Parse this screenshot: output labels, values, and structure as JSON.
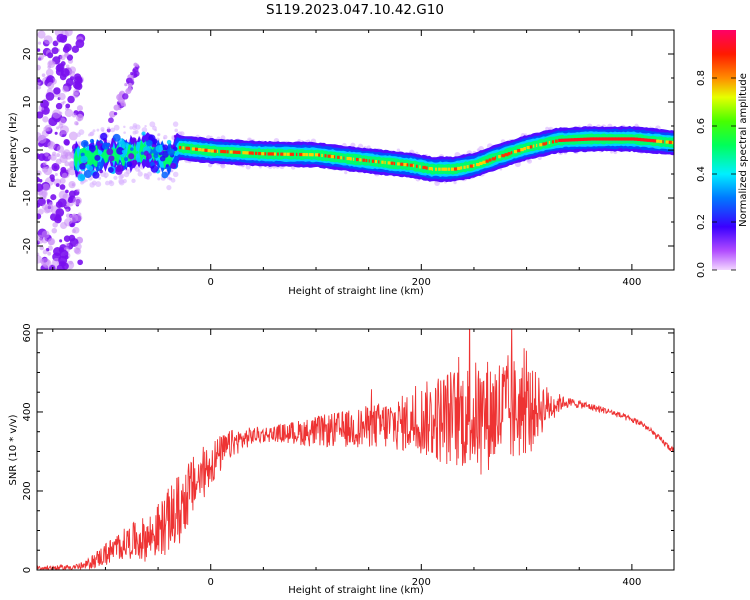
{
  "figure": {
    "title": "S119.2023.047.10.42.G10"
  },
  "chart_data": [
    {
      "type": "heatmap",
      "xlabel": "Height of straight line (km)",
      "ylabel": "Frequency (Hz)",
      "xlim": [
        -165,
        440
      ],
      "ylim": [
        -25,
        25
      ],
      "x_ticks": [
        0,
        200,
        400
      ],
      "y_ticks": [
        -20,
        -10,
        0,
        10,
        20
      ],
      "y_tick_labels": [
        "-20",
        "-10",
        "0",
        "10",
        "20"
      ],
      "grid": false,
      "colorbar": {
        "label": "Normalized spectral amplitude",
        "range": [
          0,
          1
        ],
        "ticks": [
          0.0,
          0.2,
          0.4,
          0.6,
          0.8
        ],
        "tick_labels": [
          "0.0",
          "0.2",
          "0.4",
          "0.6",
          "0.8"
        ],
        "colormap": "gist_rainbow (purple → blue → cyan → green → yellow → red → pink)"
      },
      "ridge": {
        "description": "center frequency of the dominant spectral ridge vs height",
        "x": [
          -130,
          -100,
          -80,
          -60,
          -40,
          -30,
          0,
          50,
          100,
          130,
          160,
          190,
          210,
          230,
          250,
          270,
          300,
          330,
          360,
          400,
          440
        ],
        "y": [
          -2,
          -1,
          -1,
          0,
          -2,
          0.5,
          -0.2,
          -0.8,
          -1,
          -1.8,
          -2.5,
          -3.2,
          -4,
          -4,
          -3.2,
          -1.6,
          0.5,
          2,
          2.3,
          2.3,
          1.5
        ],
        "peak_amplitude_x_range": [
          330,
          420
        ]
      },
      "regions": [
        {
          "name": "broadband noise",
          "x_range": [
            -165,
            -125
          ],
          "y_range": [
            -25,
            25
          ]
        },
        {
          "name": "rising streak",
          "x_range": [
            -95,
            -70
          ],
          "y_range": [
            5,
            18
          ]
        }
      ]
    },
    {
      "type": "line",
      "xlabel": "Height of straight line (km)",
      "ylabel": "SNR (10 * v/v)",
      "xlim": [
        -165,
        440
      ],
      "ylim": [
        0,
        610
      ],
      "x_ticks": [
        0,
        200,
        400
      ],
      "y_ticks": [
        0,
        200,
        400,
        600
      ],
      "color": "#ee3333",
      "grid": false,
      "envelope": {
        "description": "approximate mean SNR and noise spread vs height",
        "x": [
          -165,
          -140,
          -120,
          -100,
          -80,
          -60,
          -45,
          -35,
          -30,
          -20,
          0,
          20,
          40,
          60,
          100,
          140,
          180,
          200,
          220,
          250,
          280,
          300,
          320,
          335,
          350,
          380,
          410,
          440
        ],
        "y": [
          5,
          6,
          10,
          40,
          70,
          80,
          110,
          140,
          150,
          200,
          270,
          320,
          340,
          345,
          350,
          360,
          370,
          380,
          385,
          390,
          400,
          410,
          415,
          425,
          420,
          400,
          370,
          300
        ],
        "spread": [
          6,
          6,
          10,
          30,
          40,
          60,
          75,
          90,
          95,
          80,
          60,
          35,
          22,
          20,
          40,
          50,
          70,
          90,
          120,
          140,
          150,
          120,
          50,
          15,
          10,
          8,
          8,
          8
        ]
      }
    }
  ]
}
